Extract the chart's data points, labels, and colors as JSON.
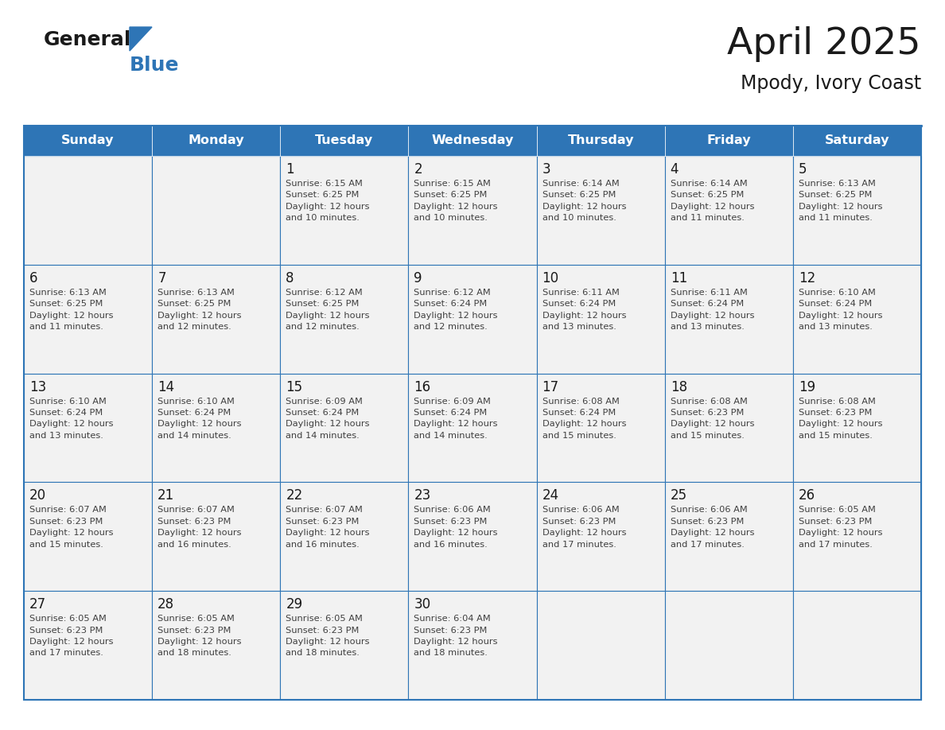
{
  "title": "April 2025",
  "subtitle": "Mpody, Ivory Coast",
  "days_of_week": [
    "Sunday",
    "Monday",
    "Tuesday",
    "Wednesday",
    "Thursday",
    "Friday",
    "Saturday"
  ],
  "header_bg": "#2E75B6",
  "header_text": "#FFFFFF",
  "cell_bg": "#F2F2F2",
  "grid_line_color": "#2E75B6",
  "day_number_color": "#1a1a1a",
  "text_color": "#404040",
  "title_color": "#1a1a1a",
  "logo_general_color": "#1a1a1a",
  "logo_blue_color": "#2E75B6",
  "logo_triangle_color": "#2E75B6",
  "weeks": [
    [
      {
        "day": null,
        "text": ""
      },
      {
        "day": null,
        "text": ""
      },
      {
        "day": 1,
        "text": "Sunrise: 6:15 AM\nSunset: 6:25 PM\nDaylight: 12 hours\nand 10 minutes."
      },
      {
        "day": 2,
        "text": "Sunrise: 6:15 AM\nSunset: 6:25 PM\nDaylight: 12 hours\nand 10 minutes."
      },
      {
        "day": 3,
        "text": "Sunrise: 6:14 AM\nSunset: 6:25 PM\nDaylight: 12 hours\nand 10 minutes."
      },
      {
        "day": 4,
        "text": "Sunrise: 6:14 AM\nSunset: 6:25 PM\nDaylight: 12 hours\nand 11 minutes."
      },
      {
        "day": 5,
        "text": "Sunrise: 6:13 AM\nSunset: 6:25 PM\nDaylight: 12 hours\nand 11 minutes."
      }
    ],
    [
      {
        "day": 6,
        "text": "Sunrise: 6:13 AM\nSunset: 6:25 PM\nDaylight: 12 hours\nand 11 minutes."
      },
      {
        "day": 7,
        "text": "Sunrise: 6:13 AM\nSunset: 6:25 PM\nDaylight: 12 hours\nand 12 minutes."
      },
      {
        "day": 8,
        "text": "Sunrise: 6:12 AM\nSunset: 6:25 PM\nDaylight: 12 hours\nand 12 minutes."
      },
      {
        "day": 9,
        "text": "Sunrise: 6:12 AM\nSunset: 6:24 PM\nDaylight: 12 hours\nand 12 minutes."
      },
      {
        "day": 10,
        "text": "Sunrise: 6:11 AM\nSunset: 6:24 PM\nDaylight: 12 hours\nand 13 minutes."
      },
      {
        "day": 11,
        "text": "Sunrise: 6:11 AM\nSunset: 6:24 PM\nDaylight: 12 hours\nand 13 minutes."
      },
      {
        "day": 12,
        "text": "Sunrise: 6:10 AM\nSunset: 6:24 PM\nDaylight: 12 hours\nand 13 minutes."
      }
    ],
    [
      {
        "day": 13,
        "text": "Sunrise: 6:10 AM\nSunset: 6:24 PM\nDaylight: 12 hours\nand 13 minutes."
      },
      {
        "day": 14,
        "text": "Sunrise: 6:10 AM\nSunset: 6:24 PM\nDaylight: 12 hours\nand 14 minutes."
      },
      {
        "day": 15,
        "text": "Sunrise: 6:09 AM\nSunset: 6:24 PM\nDaylight: 12 hours\nand 14 minutes."
      },
      {
        "day": 16,
        "text": "Sunrise: 6:09 AM\nSunset: 6:24 PM\nDaylight: 12 hours\nand 14 minutes."
      },
      {
        "day": 17,
        "text": "Sunrise: 6:08 AM\nSunset: 6:24 PM\nDaylight: 12 hours\nand 15 minutes."
      },
      {
        "day": 18,
        "text": "Sunrise: 6:08 AM\nSunset: 6:23 PM\nDaylight: 12 hours\nand 15 minutes."
      },
      {
        "day": 19,
        "text": "Sunrise: 6:08 AM\nSunset: 6:23 PM\nDaylight: 12 hours\nand 15 minutes."
      }
    ],
    [
      {
        "day": 20,
        "text": "Sunrise: 6:07 AM\nSunset: 6:23 PM\nDaylight: 12 hours\nand 15 minutes."
      },
      {
        "day": 21,
        "text": "Sunrise: 6:07 AM\nSunset: 6:23 PM\nDaylight: 12 hours\nand 16 minutes."
      },
      {
        "day": 22,
        "text": "Sunrise: 6:07 AM\nSunset: 6:23 PM\nDaylight: 12 hours\nand 16 minutes."
      },
      {
        "day": 23,
        "text": "Sunrise: 6:06 AM\nSunset: 6:23 PM\nDaylight: 12 hours\nand 16 minutes."
      },
      {
        "day": 24,
        "text": "Sunrise: 6:06 AM\nSunset: 6:23 PM\nDaylight: 12 hours\nand 17 minutes."
      },
      {
        "day": 25,
        "text": "Sunrise: 6:06 AM\nSunset: 6:23 PM\nDaylight: 12 hours\nand 17 minutes."
      },
      {
        "day": 26,
        "text": "Sunrise: 6:05 AM\nSunset: 6:23 PM\nDaylight: 12 hours\nand 17 minutes."
      }
    ],
    [
      {
        "day": 27,
        "text": "Sunrise: 6:05 AM\nSunset: 6:23 PM\nDaylight: 12 hours\nand 17 minutes."
      },
      {
        "day": 28,
        "text": "Sunrise: 6:05 AM\nSunset: 6:23 PM\nDaylight: 12 hours\nand 18 minutes."
      },
      {
        "day": 29,
        "text": "Sunrise: 6:05 AM\nSunset: 6:23 PM\nDaylight: 12 hours\nand 18 minutes."
      },
      {
        "day": 30,
        "text": "Sunrise: 6:04 AM\nSunset: 6:23 PM\nDaylight: 12 hours\nand 18 minutes."
      },
      {
        "day": null,
        "text": ""
      },
      {
        "day": null,
        "text": ""
      },
      {
        "day": null,
        "text": ""
      }
    ]
  ]
}
